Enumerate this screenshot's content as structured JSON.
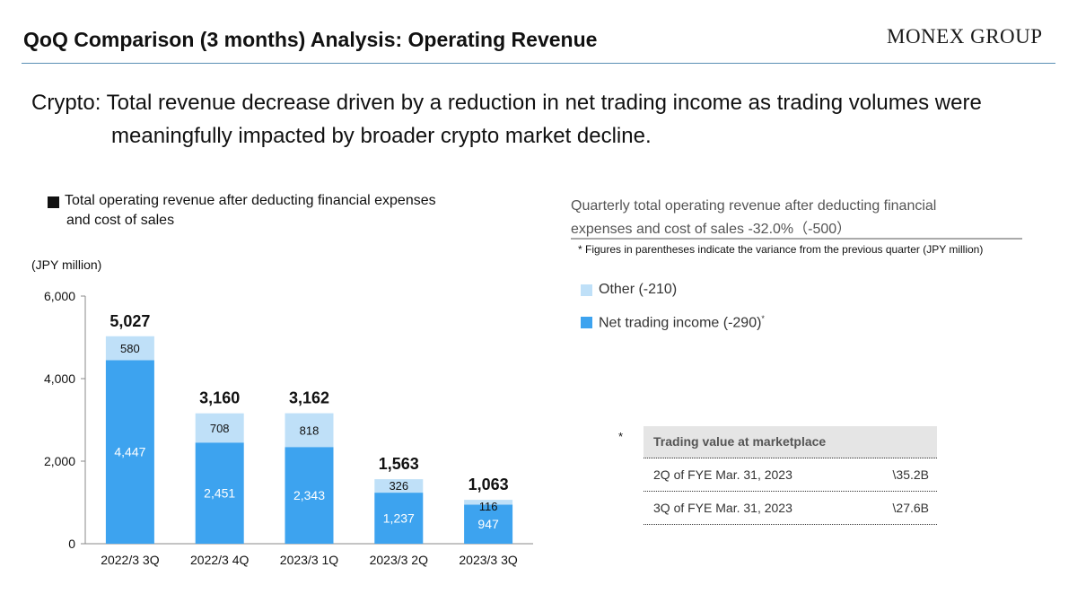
{
  "header": {
    "title": "QoQ Comparison (3 months) Analysis: Operating Revenue",
    "logo_text": "MONEX GROUP"
  },
  "headline": {
    "line1": "Crypto: Total revenue decrease driven by a reduction in net trading income as trading volumes were",
    "line2": "meaningfully impacted by broader crypto market decline."
  },
  "legend": {
    "line1": "Total operating revenue after deducting financial expenses",
    "line2": "and cost of sales"
  },
  "unit_label": "(JPY million)",
  "summary": {
    "line1": "Quarterly total operating revenue after deducting financial",
    "line2": "expenses and cost of sales -32.0%（-500）",
    "note": "* Figures in parentheses indicate the variance from the previous quarter (JPY million)"
  },
  "right_legend": {
    "other": "Other (-210)",
    "net": "Net trading income (-290)",
    "net_mark": "*"
  },
  "trading_table": {
    "star": "*",
    "header": "Trading value at marketplace",
    "rows": [
      {
        "label": "2Q of FYE Mar. 31, 2023",
        "value": "\\35.2B"
      },
      {
        "label": "3Q of FYE Mar. 31, 2023",
        "value": "\\27.6B"
      }
    ]
  },
  "colors": {
    "net": "#3da3ef",
    "other": "#bfe0f8",
    "rule": "#5a8fb5"
  },
  "chart_data": {
    "type": "bar",
    "stacked": true,
    "categories": [
      "2022/3 3Q",
      "2022/3 4Q",
      "2023/3 1Q",
      "2023/3 2Q",
      "2023/3 3Q"
    ],
    "series": [
      {
        "name": "Net trading income",
        "values": [
          4447,
          2451,
          2343,
          1237,
          947
        ],
        "color": "#3da3ef"
      },
      {
        "name": "Other",
        "values": [
          580,
          708,
          818,
          326,
          116
        ],
        "color": "#bfe0f8"
      }
    ],
    "totals": [
      5027,
      3160,
      3162,
      1563,
      1063
    ],
    "total_labels": [
      "5,027",
      "3,160",
      "3,162",
      "1,563",
      "1,063"
    ],
    "net_labels": [
      "4,447",
      "2,451",
      "2,343",
      "1,237",
      "947"
    ],
    "other_labels": [
      "580",
      "708",
      "818",
      "326",
      "116"
    ],
    "ylim": [
      0,
      6000
    ],
    "yticks": [
      0,
      2000,
      4000,
      6000
    ],
    "ytick_labels": [
      "0",
      "2,000",
      "4,000",
      "6,000"
    ],
    "ylabel": "(JPY million)",
    "grid": false
  }
}
